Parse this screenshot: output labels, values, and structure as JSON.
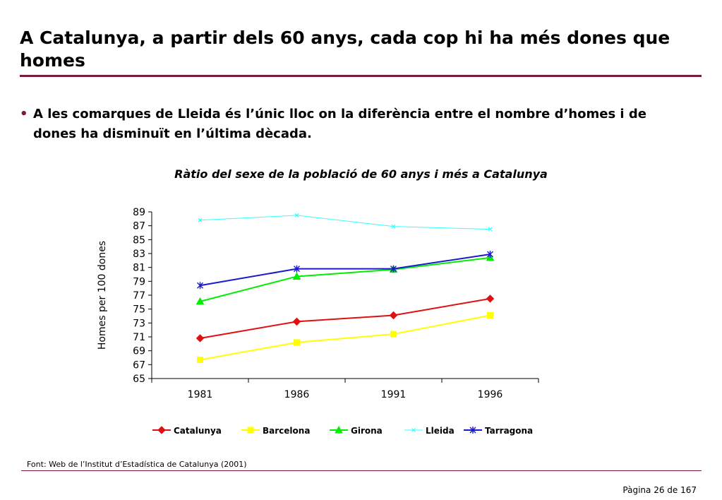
{
  "slide": {
    "title": "A Catalunya, a partir dels 60 anys, cada cop hi ha més dones que homes",
    "bullet": "A les comarques de Lleida és l’únic lloc on la diferència entre el nombre d’homes i de dones ha disminuït en l’última dècada.",
    "source": "Font: Web de l’Institut d’Estadística de Catalunya (2001)",
    "page": "Pàgina 26 de 167"
  },
  "chart_data": {
    "type": "line",
    "title": "Ràtio del sexe de la població de 60 anys i més a Catalunya",
    "xlabel": "",
    "ylabel": "Homes per 100 dones",
    "categories": [
      "1981",
      "1986",
      "1991",
      "1996"
    ],
    "ylim": [
      65,
      89
    ],
    "yticks": [
      65,
      67,
      69,
      71,
      73,
      75,
      77,
      79,
      81,
      83,
      85,
      87,
      89
    ],
    "grid": false,
    "legend_position": "bottom",
    "series": [
      {
        "name": "Catalunya",
        "values": [
          70.8,
          73.2,
          74.1,
          76.5
        ],
        "color": "#e01010",
        "marker": "diamond"
      },
      {
        "name": "Barcelona",
        "values": [
          67.7,
          70.2,
          71.4,
          74.1
        ],
        "color": "#ffff00",
        "marker": "square"
      },
      {
        "name": "Girona",
        "values": [
          76.1,
          79.7,
          80.7,
          82.4
        ],
        "color": "#00ee00",
        "marker": "triangle"
      },
      {
        "name": "Lleida",
        "values": [
          87.8,
          88.5,
          86.9,
          86.5
        ],
        "color": "#33ffff",
        "marker": "x"
      },
      {
        "name": "Tarragona",
        "values": [
          78.4,
          80.8,
          80.8,
          82.9
        ],
        "color": "#1a1acc",
        "marker": "asterisk"
      }
    ]
  }
}
